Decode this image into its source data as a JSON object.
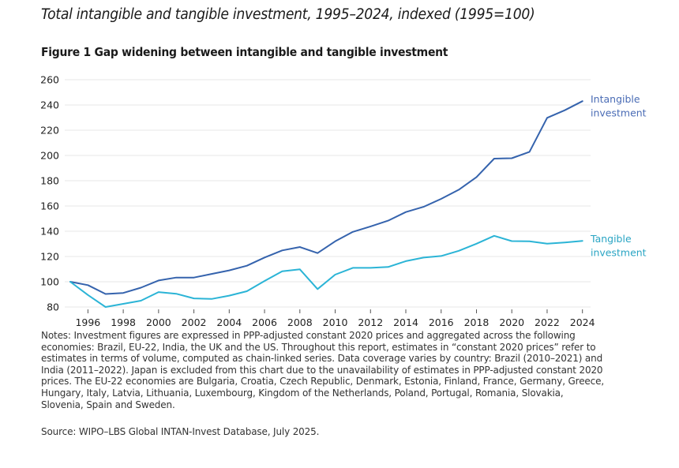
{
  "header": {
    "title": "Total intangible and tangible investment, 1995–2024, indexed (1995=100)",
    "figure_title": "Figure 1 Gap widening between intangible and tangible investment"
  },
  "chart_data": {
    "type": "line",
    "title": "Figure 1 Gap widening between intangible and tangible investment",
    "xlabel": "",
    "ylabel": "",
    "x": [
      1995,
      1996,
      1997,
      1998,
      1999,
      2000,
      2001,
      2002,
      2003,
      2004,
      2005,
      2006,
      2007,
      2008,
      2009,
      2010,
      2011,
      2012,
      2013,
      2014,
      2015,
      2016,
      2017,
      2018,
      2019,
      2020,
      2021,
      2022,
      2023,
      2024
    ],
    "xticks": [
      "1996",
      "1998",
      "2000",
      "2002",
      "2004",
      "2006",
      "2008",
      "2010",
      "2012",
      "2014",
      "2016",
      "2018",
      "2020",
      "2022",
      "2024"
    ],
    "yticks": [
      "80",
      "100",
      "120",
      "140",
      "160",
      "180",
      "200",
      "220",
      "240",
      "260"
    ],
    "ylim": [
      80,
      260
    ],
    "xlim": [
      1995,
      2024
    ],
    "grid": "horizontal",
    "legend": "direct-labels-right",
    "series": [
      {
        "name": "Intangible investment",
        "label_lines": [
          "Intangible",
          "investment"
        ],
        "color": "#3563ad",
        "label_color": "#4a6cb5",
        "values": [
          100,
          97.3,
          90.3,
          91.1,
          95.3,
          101,
          103.3,
          103.3,
          106.2,
          109,
          112.7,
          119.2,
          124.8,
          127.5,
          122.7,
          132,
          139.5,
          143.8,
          148.4,
          155.2,
          159.3,
          165.6,
          172.9,
          182.9,
          197.5,
          197.8,
          202.9,
          229.8,
          235.8,
          243
        ]
      },
      {
        "name": "Tangible investment",
        "label_lines": [
          "Tangible",
          "investment"
        ],
        "color": "#2bb4d6",
        "label_color": "#2aa5c4",
        "values": [
          100,
          89.5,
          80,
          82.5,
          85,
          91.8,
          90.5,
          86.8,
          86.4,
          89,
          92.5,
          100.6,
          108.3,
          109.8,
          94.2,
          105.6,
          111,
          111,
          111.7,
          116.3,
          119.1,
          120.4,
          124.5,
          130.1,
          136.4,
          132.2,
          132,
          130.1,
          131.1,
          132.4
        ]
      }
    ]
  },
  "notes": {
    "lines": [
      "Notes: Investment figures are expressed in PPP-adjusted constant 2020 prices and aggregated across the following",
      "economies: Brazil, EU-22, India, the UK and the US. Throughout this report, estimates in “constant 2020 prices” refer to",
      "estimates in terms of volume, computed as chain-linked series. Data coverage varies by country: Brazil (2010–2021) and",
      "India (2011–2022). Japan is excluded from this chart due to the unavailability of estimates in PPP-adjusted constant 2020",
      "prices. The EU-22 economies are Bulgaria, Croatia, Czech Republic, Denmark, Estonia, Finland, France, Germany, Greece,",
      "Hungary, Italy, Latvia, Lithuania, Luxembourg, Kingdom of the Netherlands, Poland, Portugal, Romania, Slovakia,",
      "Slovenia, Spain and Sweden."
    ],
    "source": "Source: WIPO–LBS Global INTAN-Invest Database, July 2025."
  }
}
